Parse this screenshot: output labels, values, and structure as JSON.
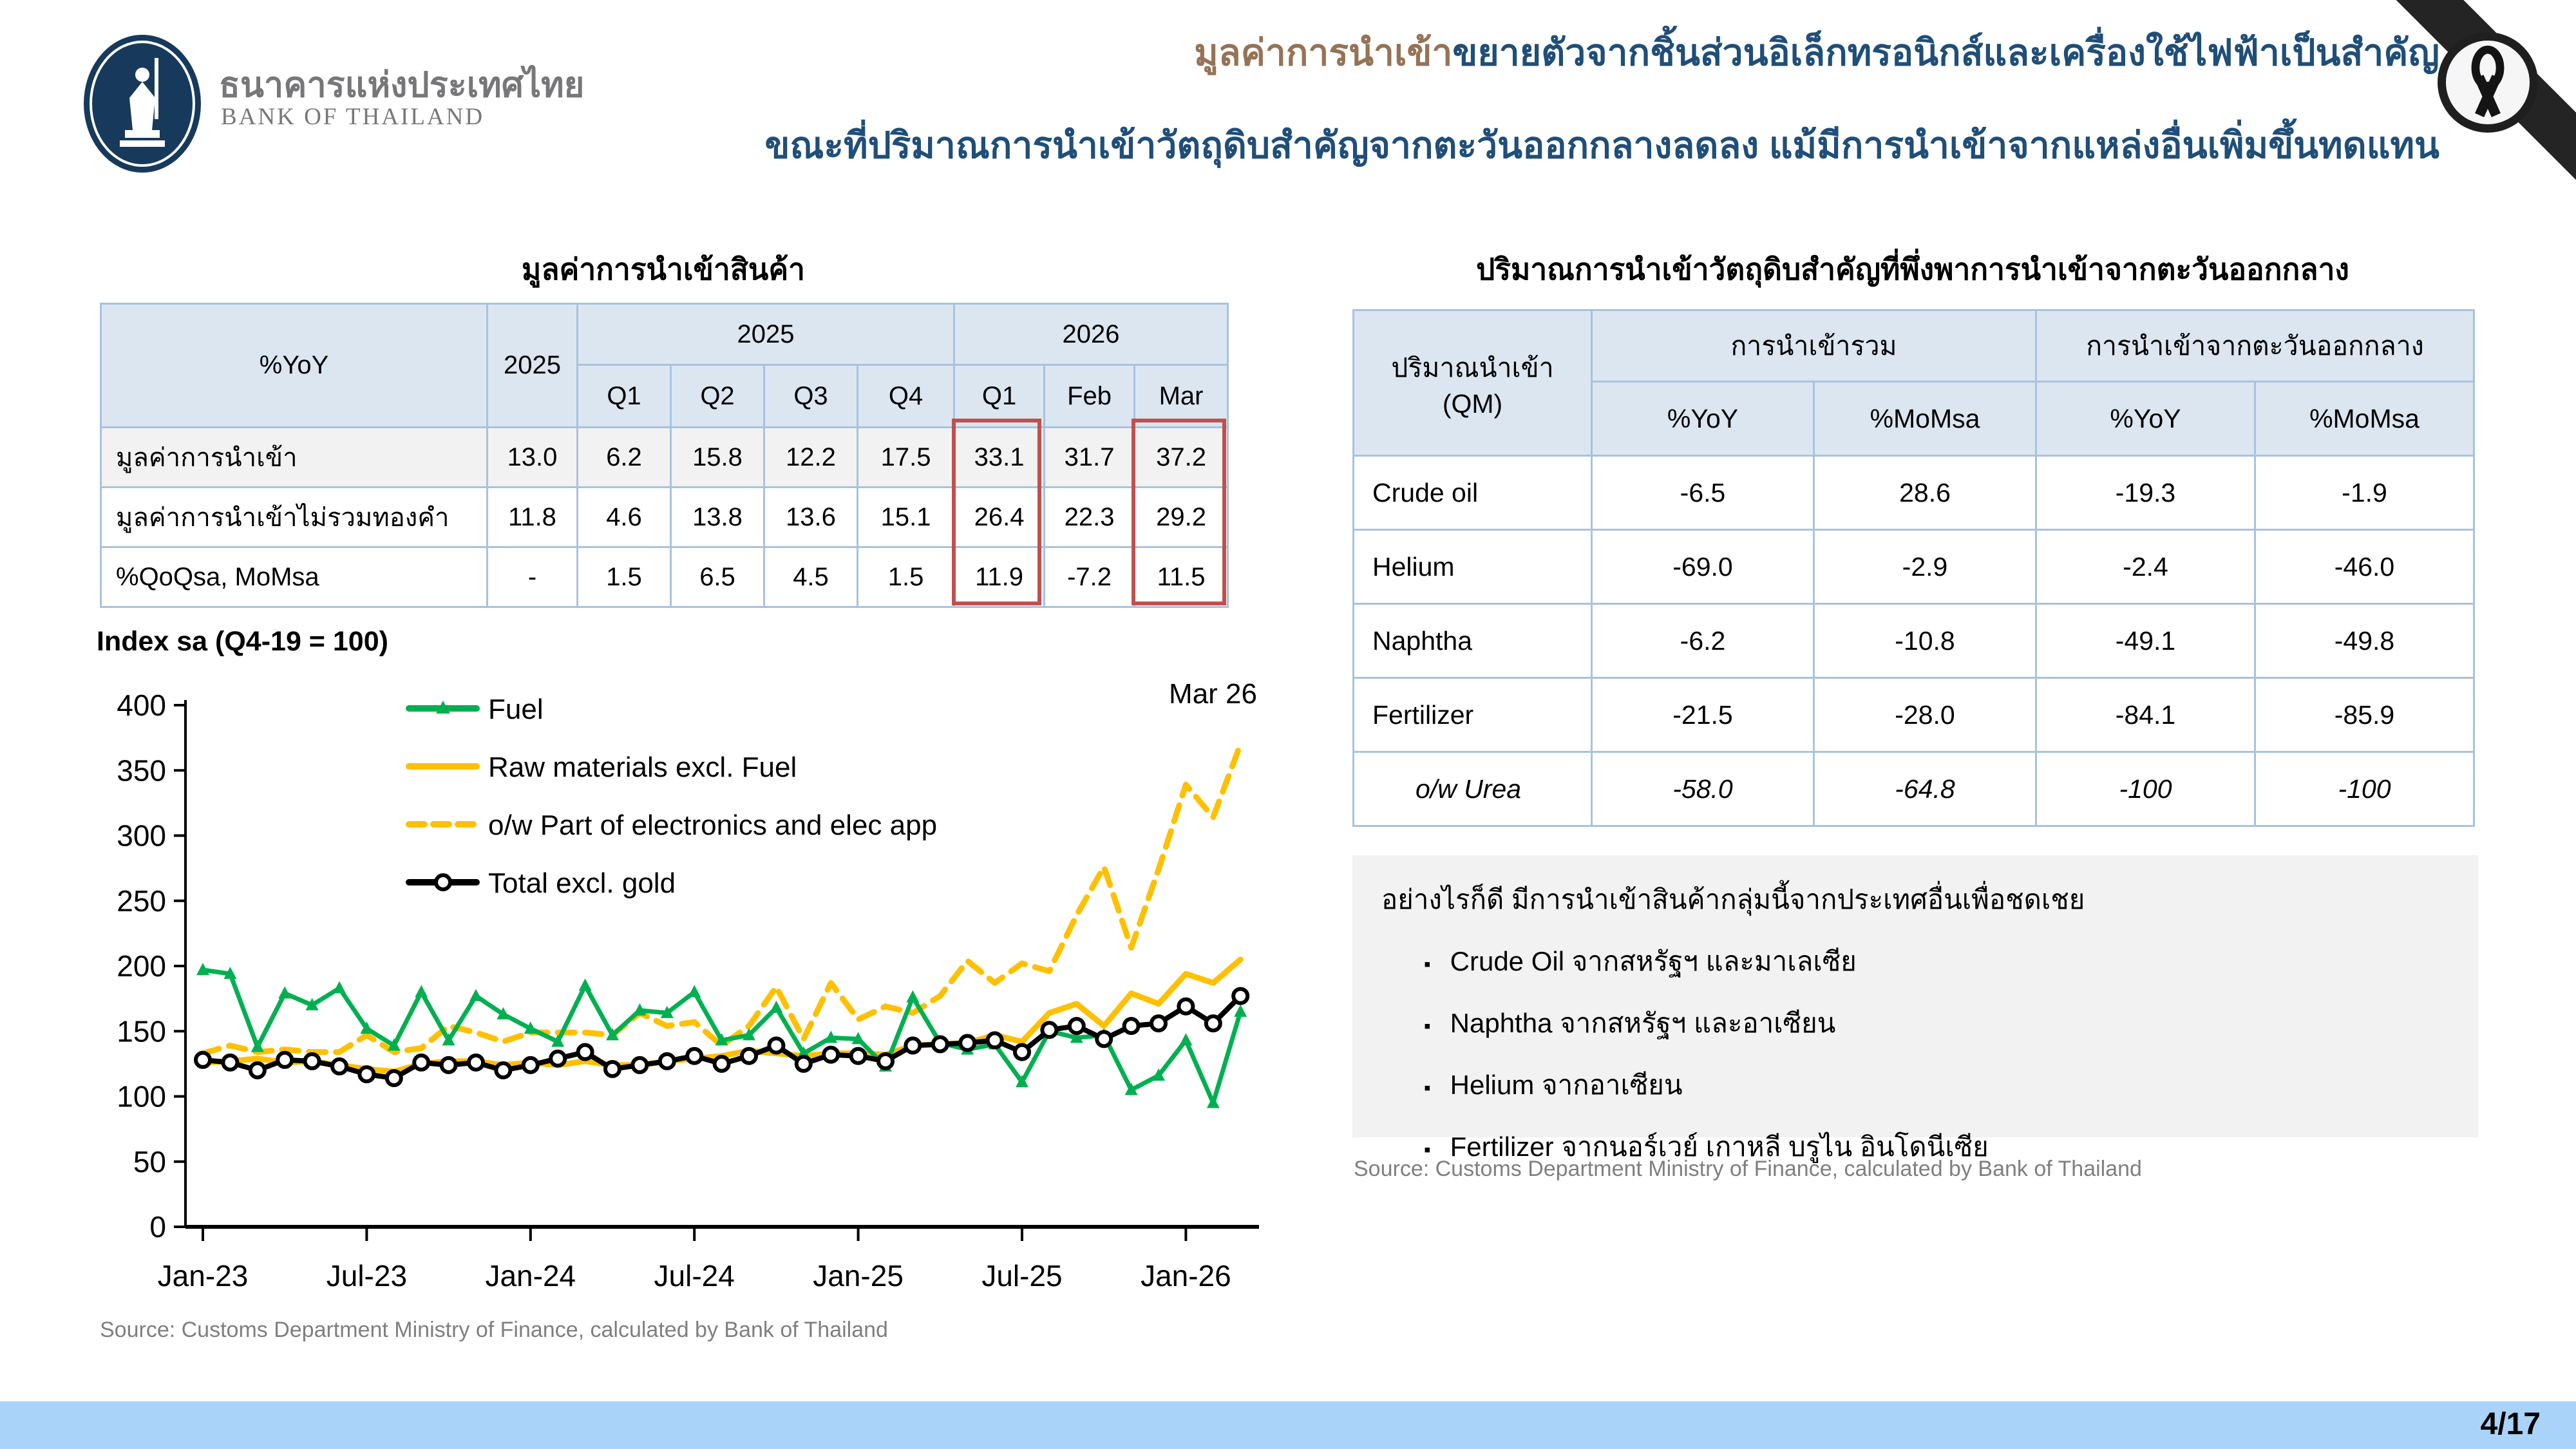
{
  "header": {
    "logo_thai": "ธนาคารแห่งประเทศไทย",
    "logo_eng": "BANK OF THAILAND",
    "title_line1_highlight": "มูลค่าการนำเข้า",
    "title_line1_rest": "ขยายตัวจากชิ้นส่วนอิเล็กทรอนิกส์และเครื่องใช้ไฟฟ้าเป็นสำคัญ",
    "title_line2": "ขณะที่ปริมาณการนำเข้าวัตถุดิบสำคัญจากตะวันออกกลางลดลง แม้มีการนำเข้าจากแหล่งอื่นเพิ่มขึ้นทดแทน",
    "accent_navy": "#1F4E79",
    "accent_brown": "#967355"
  },
  "left_panel": {
    "table_title": "มูลค่าการนำเข้าสินค้า",
    "table": {
      "corner_label": "%YoY",
      "annual_label": "2025",
      "group_2025": "2025",
      "group_2026": "2026",
      "sub_2025": [
        "Q1",
        "Q2",
        "Q3",
        "Q4"
      ],
      "sub_2026": [
        "Q1",
        "Feb",
        "Mar"
      ],
      "rows": [
        {
          "label": "มูลค่าการนำเข้า",
          "values": [
            "13.0",
            "6.2",
            "15.8",
            "12.2",
            "17.5",
            "33.1",
            "31.7",
            "37.2"
          ]
        },
        {
          "label": "มูลค่าการนำเข้าไม่รวมทองคำ",
          "values": [
            "11.8",
            "4.6",
            "13.8",
            "13.6",
            "15.1",
            "26.4",
            "22.3",
            "29.2"
          ]
        },
        {
          "label": "%QoQsa, MoMsa",
          "values": [
            "-",
            "1.5",
            "6.5",
            "4.5",
            "1.5",
            "11.9",
            "-7.2",
            "11.5"
          ]
        }
      ],
      "highlight_color": "#C0504D"
    },
    "source": "Source: Customs Department Ministry of Finance, calculated by Bank of Thailand"
  },
  "chart_data": {
    "type": "line",
    "title": "Index sa (Q4-19 = 100)",
    "annotation": "Mar 26",
    "ylim": [
      0,
      400
    ],
    "ytick_step": 50,
    "grid": false,
    "legend_position": "top-left-inside",
    "x_unit": "month",
    "x_start": "Jan-23",
    "x_end": "Mar-26",
    "x_tick_labels": [
      "Jan-23",
      "Jul-23",
      "Jan-24",
      "Jul-24",
      "Jan-25",
      "Jul-25",
      "Jan-26"
    ],
    "x_tick_month_index": [
      0,
      6,
      12,
      18,
      24,
      30,
      36
    ],
    "series": [
      {
        "name": "Fuel",
        "color": "#00B050",
        "style": "solid",
        "marker": "triangle",
        "values": [
          197,
          194,
          138,
          179,
          170,
          183,
          152,
          139,
          180,
          143,
          177,
          163,
          152,
          142,
          185,
          147,
          166,
          164,
          180,
          143,
          147,
          168,
          133,
          145,
          144,
          123,
          176,
          141,
          136,
          140,
          111,
          150,
          145,
          147,
          105,
          116,
          143,
          95,
          165
        ]
      },
      {
        "name": "Raw materials excl. Fuel",
        "color": "#FFC000",
        "style": "solid",
        "marker": "none",
        "values": [
          126,
          127,
          129,
          126,
          127,
          124,
          121,
          119,
          125,
          127,
          127,
          124,
          126,
          124,
          127,
          124,
          124,
          127,
          129,
          131,
          135,
          133,
          131,
          133,
          133,
          132,
          139,
          140,
          141,
          147,
          142,
          164,
          171,
          154,
          179,
          171,
          194,
          187,
          205
        ]
      },
      {
        "name": "o/w Part of electronics and elec app",
        "color": "#FFC000",
        "style": "dashed",
        "marker": "none",
        "values": [
          133,
          139,
          134,
          136,
          134,
          134,
          147,
          134,
          137,
          154,
          149,
          142,
          149,
          149,
          149,
          147,
          164,
          154,
          157,
          139,
          154,
          184,
          144,
          187,
          159,
          169,
          164,
          177,
          204,
          187,
          202,
          196,
          239,
          276,
          214,
          274,
          339,
          314,
          370
        ]
      },
      {
        "name": "Total excl. gold",
        "color": "#000000",
        "style": "solid",
        "marker": "circle",
        "values": [
          128,
          126,
          120,
          128,
          127,
          123,
          117,
          114,
          126,
          124,
          126,
          120,
          124,
          129,
          134,
          121,
          124,
          127,
          131,
          125,
          131,
          139,
          125,
          132,
          131,
          127,
          139,
          140,
          141,
          143,
          134,
          151,
          154,
          144,
          154,
          156,
          169,
          156,
          177
        ]
      }
    ]
  },
  "right_panel": {
    "table_title": "ปริมาณการนำเข้าวัตถุดิบสำคัญที่พึ่งพาการนำเข้าจากตะวันออกกลาง",
    "table": {
      "corner_line1": "ปริมาณนำเข้า",
      "corner_line2": "(QM)",
      "group_total": "การนำเข้ารวม",
      "group_mideast": "การนำเข้าจากตะวันออกกลาง",
      "sub": [
        "%YoY",
        "%MoMsa",
        "%YoY",
        "%MoMsa"
      ],
      "rows": [
        {
          "label": "Crude oil",
          "values": [
            "-6.5",
            "28.6",
            "-19.3",
            "-1.9"
          ]
        },
        {
          "label": "Helium",
          "values": [
            "-69.0",
            "-2.9",
            "-2.4",
            "-46.0"
          ]
        },
        {
          "label": "Naphtha",
          "values": [
            "-6.2",
            "-10.8",
            "-49.1",
            "-49.8"
          ]
        },
        {
          "label": "Fertilizer",
          "values": [
            "-21.5",
            "-28.0",
            "-84.1",
            "-85.9"
          ]
        },
        {
          "label": "o/w Urea",
          "values": [
            "-58.0",
            "-64.8",
            "-100",
            "-100"
          ]
        }
      ]
    },
    "note_box": {
      "heading": "อย่างไรก็ดี มีการนำเข้าสินค้ากลุ่มนี้จากประเทศอื่นเพื่อชดเชย",
      "items": [
        "Crude Oil จากสหรัฐฯ และมาเลเซีย",
        "Naphtha จากสหรัฐฯ และอาเซียน",
        "Helium จากอาเซียน",
        "Fertilizer จากนอร์เวย์ เกาหลี บรูไน อินโดนีเซีย"
      ]
    },
    "source": "Source: Customs Department Ministry of Finance, calculated by Bank of Thailand"
  },
  "footer": {
    "page_number": "4/17",
    "bar_color": "#A9D3F8"
  }
}
